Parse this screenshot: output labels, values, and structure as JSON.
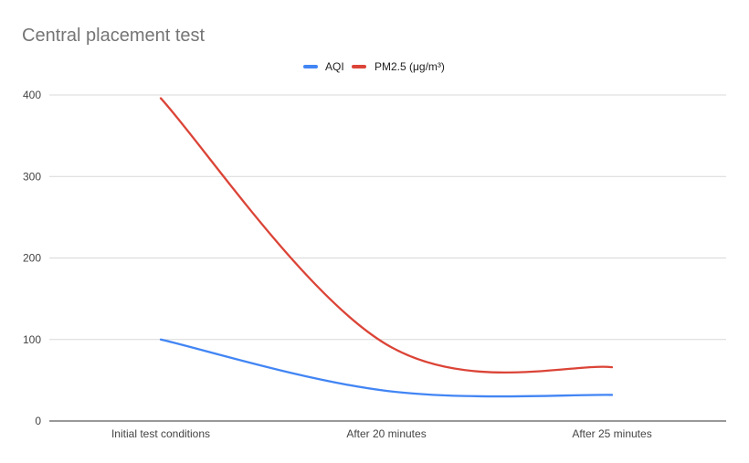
{
  "chart_data": {
    "type": "line",
    "title": "Central placement test",
    "categories": [
      "Initial test conditions",
      "After 20 minutes",
      "After 25 minutes"
    ],
    "series": [
      {
        "name": "AQI",
        "values": [
          100,
          37,
          32
        ],
        "color": "#4285f4"
      },
      {
        "name": "PM2.5 (μg/m³)",
        "values": [
          396,
          94,
          66
        ],
        "color": "#db4437"
      }
    ],
    "ylim": [
      0,
      400
    ],
    "yticks": [
      0,
      100,
      200,
      300,
      400
    ],
    "xlabel": "",
    "ylabel": "",
    "grid": true,
    "legend_position": "top",
    "curve": "smooth"
  }
}
